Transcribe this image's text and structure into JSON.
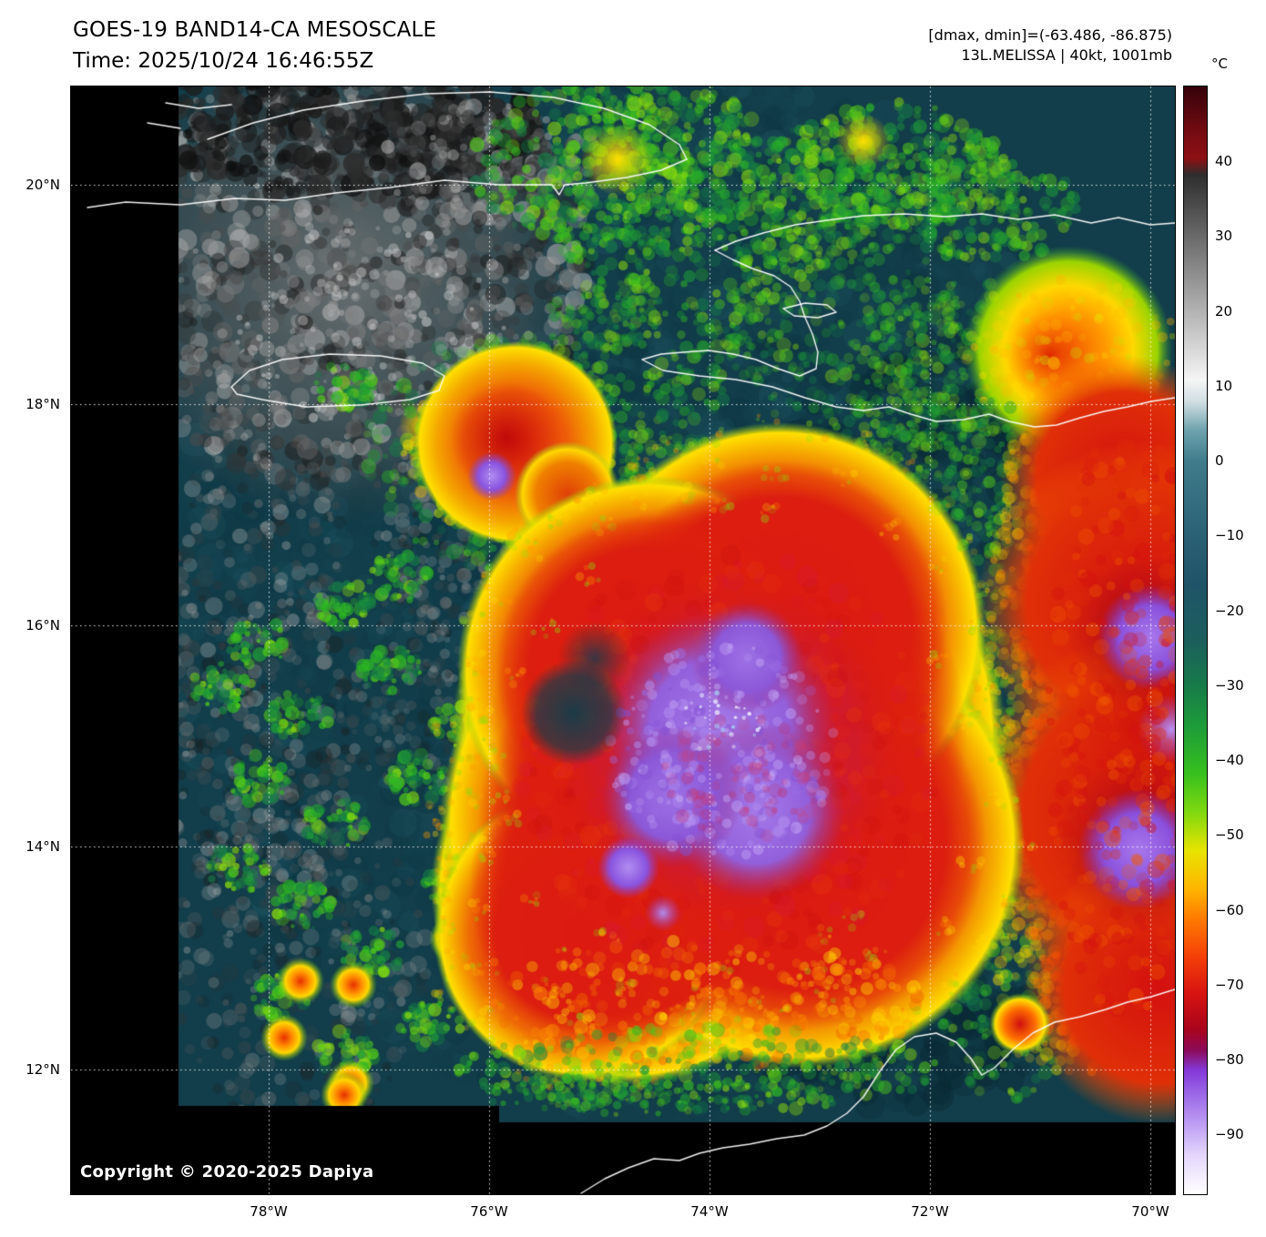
{
  "header": {
    "title": "GOES-19 BAND14-CA MESOSCALE",
    "time": "Time: 2025/10/24 16:46:55Z",
    "range_info": "[dmax, dmin]=(-63.486, -86.875)",
    "storm_info": "13L.MELISSA | 40kt, 1001mb"
  },
  "colorbar": {
    "unit": "°C",
    "ticks": [
      "40",
      "30",
      "20",
      "10",
      "0",
      "−10",
      "−20",
      "−30",
      "−40",
      "−50",
      "−60",
      "−70",
      "−80",
      "−90"
    ]
  },
  "axes": {
    "lat": [
      "20°N",
      "18°N",
      "16°N",
      "14°N",
      "12°N"
    ],
    "lon": [
      "78°W",
      "76°W",
      "74°W",
      "72°W",
      "70°W"
    ]
  },
  "map": {
    "copyright": "Copyright © 2020-2025 Dapiya"
  }
}
